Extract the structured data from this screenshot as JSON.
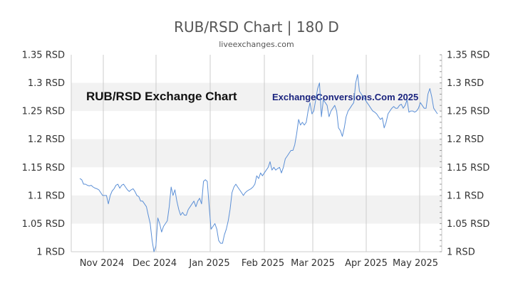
{
  "chart_data": {
    "type": "line",
    "title": "RUB/RSD Chart | 180 D",
    "subtitle": "liveexchanges.com",
    "watermark_left": "RUB/RSD Exchange Chart",
    "watermark_right": "ExchangeConversions.Com 2025",
    "ylim": [
      1.0,
      1.35
    ],
    "y_ticks": [
      {
        "value": 1.35,
        "label": "1.35 RSD"
      },
      {
        "value": 1.3,
        "label": "1.3 RSD"
      },
      {
        "value": 1.25,
        "label": "1.25 RSD"
      },
      {
        "value": 1.2,
        "label": "1.2 RSD"
      },
      {
        "value": 1.15,
        "label": "1.15 RSD"
      },
      {
        "value": 1.1,
        "label": "1.1 RSD"
      },
      {
        "value": 1.05,
        "label": "1.05 RSD"
      },
      {
        "value": 1.0,
        "label": "1 RSD"
      }
    ],
    "x_ticks": [
      "Nov 2024",
      "Dec 2024",
      "Jan 2025",
      "Feb 2025",
      "Mar 2025",
      "Apr 2025",
      "May 2025"
    ],
    "grid": true,
    "line_color": "#5b8fd6",
    "series": [
      {
        "values": [
          1.13,
          1.128,
          1.12,
          1.12,
          1.118,
          1.117,
          1.118,
          1.115,
          1.113,
          1.112,
          1.11,
          1.105,
          1.1,
          1.1,
          1.1,
          1.085,
          1.1,
          1.108,
          1.112,
          1.118,
          1.12,
          1.113,
          1.118,
          1.12,
          1.115,
          1.11,
          1.107,
          1.11,
          1.112,
          1.107,
          1.1,
          1.098,
          1.09,
          1.09,
          1.085,
          1.08,
          1.065,
          1.05,
          1.02,
          1.0,
          1.01,
          1.06,
          1.05,
          1.035,
          1.045,
          1.05,
          1.055,
          1.08,
          1.115,
          1.1,
          1.11,
          1.09,
          1.075,
          1.065,
          1.07,
          1.065,
          1.065,
          1.075,
          1.08,
          1.085,
          1.09,
          1.08,
          1.09,
          1.095,
          1.085,
          1.125,
          1.128,
          1.125,
          1.08,
          1.04,
          1.045,
          1.05,
          1.04,
          1.02,
          1.015,
          1.015,
          1.03,
          1.04,
          1.055,
          1.075,
          1.105,
          1.115,
          1.12,
          1.115,
          1.11,
          1.105,
          1.1,
          1.105,
          1.108,
          1.11,
          1.112,
          1.115,
          1.12,
          1.135,
          1.13,
          1.14,
          1.135,
          1.14,
          1.145,
          1.15,
          1.16,
          1.145,
          1.15,
          1.145,
          1.148,
          1.15,
          1.14,
          1.15,
          1.165,
          1.17,
          1.175,
          1.18,
          1.18,
          1.19,
          1.21,
          1.235,
          1.225,
          1.23,
          1.225,
          1.23,
          1.25,
          1.265,
          1.245,
          1.25,
          1.27,
          1.29,
          1.3,
          1.24,
          1.27,
          1.265,
          1.26,
          1.24,
          1.25,
          1.255,
          1.26,
          1.25,
          1.22,
          1.215,
          1.205,
          1.22,
          1.24,
          1.25,
          1.255,
          1.26,
          1.265,
          1.3,
          1.315,
          1.285,
          1.28,
          1.275,
          1.27,
          1.265,
          1.26,
          1.255,
          1.25,
          1.248,
          1.245,
          1.24,
          1.235,
          1.238,
          1.22,
          1.23,
          1.245,
          1.25,
          1.255,
          1.258,
          1.255,
          1.255,
          1.26,
          1.262,
          1.255,
          1.26,
          1.27,
          1.248,
          1.25,
          1.25,
          1.248,
          1.25,
          1.255,
          1.265,
          1.26,
          1.255,
          1.255,
          1.28,
          1.29,
          1.275,
          1.255,
          1.25,
          1.245
        ]
      }
    ]
  }
}
